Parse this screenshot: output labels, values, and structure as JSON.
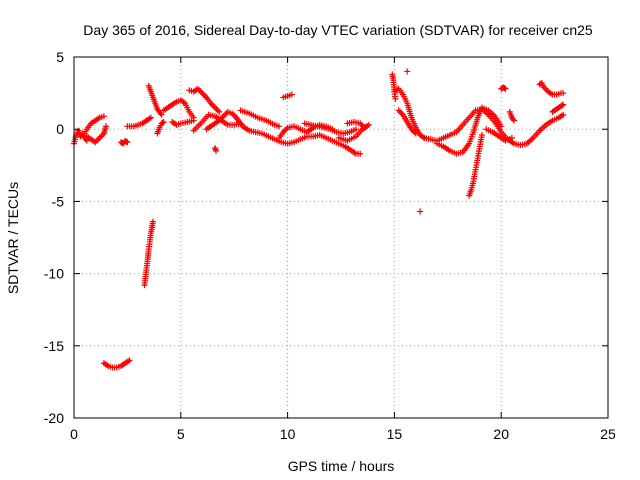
{
  "chart_data": {
    "type": "scatter",
    "title": "Day 365 of 2016, Sidereal Day-to-day VTEC variation (SDTVAR) for receiver cn25",
    "xlabel": "GPS time / hours",
    "ylabel": "SDTVAR / TECUs",
    "xlim": [
      0,
      25
    ],
    "ylim": [
      -20,
      5
    ],
    "xticks": [
      0,
      5,
      10,
      15,
      20,
      25
    ],
    "xtick_labels": [
      "0",
      "5",
      "10",
      "15",
      "20",
      "25"
    ],
    "yticks": [
      -20,
      -15,
      -10,
      -5,
      0,
      5
    ],
    "ytick_labels": [
      "-20",
      "-15",
      "-10",
      "-5",
      "0",
      "5"
    ],
    "grid": true,
    "marker": "+",
    "series": [
      {
        "name": "SDTVAR",
        "color": "#ff0000",
        "segments": [
          [
            [
              0,
              -1.0
            ],
            [
              0.1,
              -0.4
            ],
            [
              0.2,
              -0.1
            ],
            [
              0.3,
              -0.5
            ],
            [
              0.4,
              -0.3
            ],
            [
              0.5,
              -0.6
            ],
            [
              0.6,
              -0.8
            ]
          ],
          [
            [
              0.5,
              -0.3
            ],
            [
              0.6,
              0.0
            ],
            [
              0.8,
              0.4
            ],
            [
              1.0,
              0.6
            ],
            [
              1.2,
              0.8
            ],
            [
              1.4,
              0.9
            ]
          ],
          [
            [
              0.6,
              -0.5
            ],
            [
              0.8,
              -0.7
            ],
            [
              1.0,
              -0.9
            ],
            [
              1.2,
              -0.6
            ],
            [
              1.4,
              -0.3
            ],
            [
              1.5,
              0.2
            ]
          ],
          [
            [
              1.4,
              -16.2
            ],
            [
              1.6,
              -16.4
            ],
            [
              1.8,
              -16.5
            ],
            [
              2.0,
              -16.5
            ],
            [
              2.2,
              -16.4
            ],
            [
              2.4,
              -16.2
            ],
            [
              2.6,
              -16.0
            ]
          ],
          [
            [
              2.2,
              -0.9
            ],
            [
              2.3,
              -1.0
            ],
            [
              2.4,
              -0.8
            ],
            [
              2.5,
              -0.9
            ]
          ],
          [
            [
              2.5,
              0.2
            ],
            [
              2.8,
              0.2
            ],
            [
              3.0,
              0.3
            ],
            [
              3.2,
              0.4
            ],
            [
              3.4,
              0.6
            ],
            [
              3.6,
              0.8
            ]
          ],
          [
            [
              3.3,
              -10.8
            ],
            [
              3.35,
              -10.2
            ],
            [
              3.4,
              -9.6
            ],
            [
              3.45,
              -9.0
            ],
            [
              3.5,
              -8.3
            ],
            [
              3.55,
              -7.8
            ],
            [
              3.6,
              -7.2
            ],
            [
              3.65,
              -6.8
            ],
            [
              3.7,
              -6.4
            ]
          ],
          [
            [
              3.5,
              3.0
            ],
            [
              3.6,
              2.6
            ],
            [
              3.7,
              2.2
            ],
            [
              3.8,
              1.8
            ],
            [
              3.9,
              1.4
            ],
            [
              4.0,
              1.2
            ],
            [
              4.1,
              1.0
            ]
          ],
          [
            [
              3.9,
              -0.3
            ],
            [
              4.0,
              0.1
            ],
            [
              4.1,
              0.4
            ],
            [
              4.2,
              0.5
            ]
          ],
          [
            [
              4.2,
              1.3
            ],
            [
              4.5,
              1.6
            ],
            [
              4.8,
              1.9
            ],
            [
              5.0,
              2.0
            ],
            [
              5.2,
              1.8
            ],
            [
              5.4,
              1.2
            ],
            [
              5.6,
              0.8
            ]
          ],
          [
            [
              4.6,
              0.5
            ],
            [
              4.8,
              0.3
            ],
            [
              5.0,
              0.4
            ],
            [
              5.3,
              0.5
            ],
            [
              5.6,
              0.6
            ]
          ],
          [
            [
              5.4,
              2.7
            ],
            [
              5.6,
              2.6
            ],
            [
              5.8,
              2.8
            ],
            [
              6.0,
              2.5
            ],
            [
              6.2,
              2.2
            ],
            [
              6.4,
              1.8
            ],
            [
              6.6,
              1.5
            ],
            [
              6.8,
              1.2
            ]
          ],
          [
            [
              5.6,
              -0.1
            ],
            [
              6.0,
              0.5
            ],
            [
              6.3,
              1.0
            ],
            [
              6.6,
              0.9
            ],
            [
              6.9,
              0.6
            ],
            [
              7.2,
              0.3
            ],
            [
              7.5,
              0.3
            ],
            [
              7.8,
              0.4
            ]
          ],
          [
            [
              6.2,
              0.0
            ],
            [
              6.5,
              0.3
            ],
            [
              6.8,
              0.6
            ],
            [
              7.0,
              0.9
            ],
            [
              7.2,
              1.2
            ],
            [
              7.4,
              1.1
            ],
            [
              7.6,
              0.8
            ]
          ],
          [
            [
              6.6,
              -1.3
            ],
            [
              6.65,
              -1.5
            ]
          ],
          [
            [
              7.6,
              0.8
            ],
            [
              7.9,
              0.2
            ],
            [
              8.2,
              -0.1
            ],
            [
              8.5,
              -0.2
            ],
            [
              8.8,
              -0.3
            ],
            [
              9.1,
              -0.5
            ],
            [
              9.4,
              -0.7
            ],
            [
              9.7,
              -0.9
            ],
            [
              10.0,
              -1.0
            ],
            [
              10.3,
              -0.9
            ],
            [
              10.6,
              -0.7
            ],
            [
              10.9,
              -0.5
            ],
            [
              11.2,
              -0.5
            ],
            [
              11.5,
              -0.4
            ],
            [
              11.8,
              -0.6
            ],
            [
              12.1,
              -0.8
            ],
            [
              12.4,
              -1.0
            ],
            [
              12.7,
              -1.2
            ],
            [
              13.0,
              -1.5
            ],
            [
              13.2,
              -1.7
            ],
            [
              13.4,
              -1.7
            ]
          ],
          [
            [
              7.8,
              1.3
            ],
            [
              8.2,
              1.1
            ],
            [
              8.6,
              0.8
            ],
            [
              9.0,
              0.6
            ],
            [
              9.4,
              0.3
            ],
            [
              9.6,
              0.2
            ]
          ],
          [
            [
              9.8,
              2.2
            ],
            [
              10.0,
              2.3
            ],
            [
              10.2,
              2.4
            ]
          ],
          [
            [
              9.6,
              -0.6
            ],
            [
              9.8,
              -0.2
            ],
            [
              10.0,
              0.1
            ],
            [
              10.3,
              0.2
            ],
            [
              10.6,
              0.0
            ],
            [
              10.9,
              -0.2
            ],
            [
              11.2,
              0.1
            ],
            [
              11.5,
              0.3
            ],
            [
              11.8,
              0.2
            ],
            [
              12.1,
              0.0
            ]
          ],
          [
            [
              10.8,
              0.4
            ],
            [
              11.1,
              0.3
            ],
            [
              11.4,
              0.2
            ],
            [
              11.7,
              0.1
            ],
            [
              12.0,
              0.0
            ],
            [
              12.3,
              -0.2
            ],
            [
              12.6,
              -0.3
            ],
            [
              12.9,
              -0.2
            ],
            [
              13.2,
              0.0
            ]
          ],
          [
            [
              12.4,
              -0.6
            ],
            [
              12.8,
              -0.8
            ],
            [
              13.2,
              -0.5
            ],
            [
              13.5,
              0.0
            ],
            [
              13.8,
              0.3
            ]
          ],
          [
            [
              12.8,
              0.4
            ],
            [
              13.1,
              0.5
            ],
            [
              13.4,
              0.4
            ],
            [
              13.6,
              0.1
            ]
          ],
          [
            [
              14.9,
              3.8
            ],
            [
              14.95,
              3.4
            ],
            [
              15.0,
              2.6
            ],
            [
              15.05,
              2.1
            ]
          ],
          [
            [
              15.0,
              2.6
            ],
            [
              15.2,
              2.8
            ],
            [
              15.4,
              2.4
            ],
            [
              15.6,
              1.8
            ],
            [
              15.8,
              0.8
            ],
            [
              16.0,
              0.1
            ],
            [
              16.2,
              -0.4
            ],
            [
              16.4,
              -0.6
            ]
          ],
          [
            [
              15.2,
              1.3
            ],
            [
              15.4,
              1.0
            ],
            [
              15.6,
              0.5
            ],
            [
              15.8,
              0.0
            ],
            [
              16.0,
              -0.3
            ]
          ],
          [
            [
              16.4,
              -0.6
            ],
            [
              16.7,
              -0.7
            ],
            [
              17.0,
              -0.8
            ],
            [
              17.3,
              -0.6
            ],
            [
              17.6,
              -0.4
            ],
            [
              17.9,
              -0.2
            ],
            [
              18.2,
              0.3
            ],
            [
              18.5,
              0.8
            ],
            [
              18.8,
              1.3
            ],
            [
              19.1,
              1.4
            ],
            [
              19.4,
              1.0
            ],
            [
              19.7,
              0.5
            ],
            [
              20.0,
              -0.2
            ],
            [
              20.3,
              -0.7
            ],
            [
              20.6,
              -1.0
            ],
            [
              20.9,
              -1.1
            ],
            [
              21.2,
              -1.0
            ],
            [
              21.5,
              -0.6
            ],
            [
              21.8,
              -0.1
            ],
            [
              22.1,
              0.3
            ],
            [
              22.4,
              0.6
            ],
            [
              22.7,
              0.8
            ],
            [
              22.9,
              1.0
            ]
          ],
          [
            [
              17.0,
              -1.0
            ],
            [
              17.3,
              -1.2
            ],
            [
              17.6,
              -1.5
            ],
            [
              17.9,
              -1.7
            ],
            [
              18.2,
              -1.6
            ],
            [
              18.5,
              -1.0
            ],
            [
              18.7,
              -0.2
            ],
            [
              18.9,
              0.8
            ],
            [
              19.1,
              1.5
            ],
            [
              19.4,
              1.3
            ],
            [
              19.7,
              0.9
            ],
            [
              20.0,
              0.2
            ]
          ],
          [
            [
              18.5,
              -4.6
            ],
            [
              18.6,
              -4.2
            ],
            [
              18.7,
              -3.6
            ],
            [
              18.8,
              -2.8
            ],
            [
              18.9,
              -2.0
            ],
            [
              19.0,
              -1.2
            ],
            [
              19.1,
              -0.4
            ]
          ],
          [
            [
              19.3,
              0.0
            ],
            [
              19.6,
              -0.2
            ],
            [
              19.9,
              -0.5
            ],
            [
              20.2,
              -0.8
            ],
            [
              20.5,
              -0.6
            ]
          ],
          [
            [
              20.0,
              2.8
            ],
            [
              20.1,
              2.9
            ],
            [
              20.2,
              2.8
            ]
          ],
          [
            [
              20.4,
              1.2
            ],
            [
              20.5,
              0.8
            ],
            [
              20.6,
              0.6
            ]
          ],
          [
            [
              21.8,
              3.1
            ],
            [
              21.9,
              3.2
            ],
            [
              22.0,
              2.9
            ],
            [
              22.2,
              2.6
            ],
            [
              22.4,
              2.4
            ],
            [
              22.6,
              2.4
            ],
            [
              22.8,
              2.5
            ],
            [
              22.9,
              2.5
            ]
          ],
          [
            [
              22.4,
              1.2
            ],
            [
              22.6,
              1.4
            ],
            [
              22.8,
              1.6
            ],
            [
              22.9,
              1.7
            ]
          ],
          [
            [
              15.6,
              4.0
            ]
          ],
          [
            [
              16.2,
              -5.7
            ]
          ]
        ]
      }
    ]
  }
}
